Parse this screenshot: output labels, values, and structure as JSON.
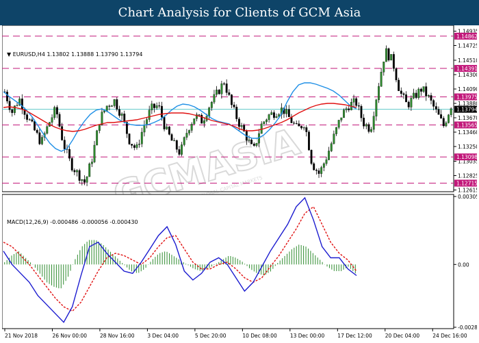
{
  "title": "Chart Analysis for Clients of GCM Asia",
  "header": {
    "symbol": "EURUSD,H4",
    "ohlc": "1.13802 1.13888 1.13790 1.13794",
    "macd_label": "MACD(12,26,9) -0.000486 -0.000056 -0.000430"
  },
  "watermark": {
    "text": "GCMASIA",
    "sub": "GLOBAL CAPITAL MARKETS"
  },
  "colors": {
    "banner": "#0e4468",
    "ma_fast": "#1e8fe6",
    "ma_slow": "#e01010",
    "level": "#c2187a",
    "current": "#5fc8c8",
    "macd_hist": "#2e8b2e",
    "macd_signal": "#e01010",
    "macd_line": "#1a1acf"
  },
  "chart_data": [
    {
      "type": "candlestick",
      "symbol": "EURUSD",
      "timeframe": "H4",
      "ylim": [
        1.1261,
        1.15
      ],
      "y_ticks": [
        "1.14935",
        "1.14725",
        "1.14510",
        "1.14300",
        "1.14090",
        "1.13880",
        "1.13670",
        "1.13460",
        "1.13250",
        "1.13035",
        "1.12825",
        "1.12615"
      ],
      "levels": [
        {
          "label": "1.14862",
          "value": 1.14862
        },
        {
          "label": "1.14391",
          "value": 1.14391
        },
        {
          "label": "1.13975",
          "value": 1.13975
        },
        {
          "label": "1.13565",
          "value": 1.13565
        },
        {
          "label": "1.13098",
          "value": 1.13098
        },
        {
          "label": "1.12715",
          "value": 1.12715
        }
      ],
      "current_price": {
        "label": "1.13794",
        "value": 1.13794
      },
      "x_ticks": [
        "21 Nov 2018",
        "26 Nov 00:00",
        "28 Nov 16:00",
        "3 Dec 04:00",
        "5 Dec 20:00",
        "10 Dec 08:00",
        "13 Dec 00:00",
        "17 Dec 12:00",
        "20 Dec 04:00",
        "24 Dec 16:00"
      ],
      "close_path": [
        1.1405,
        1.1375,
        1.1395,
        1.137,
        1.135,
        1.133,
        1.1358,
        1.138,
        1.133,
        1.13,
        1.1285,
        1.1272,
        1.131,
        1.1365,
        1.1385,
        1.1392,
        1.137,
        1.1335,
        1.132,
        1.1355,
        1.138,
        1.1385,
        1.135,
        1.133,
        1.1315,
        1.135,
        1.137,
        1.1362,
        1.1385,
        1.1402,
        1.142,
        1.1385,
        1.136,
        1.134,
        1.1318,
        1.1355,
        1.137,
        1.1375,
        1.138,
        1.1365,
        1.135,
        1.136,
        1.13,
        1.1285,
        1.131,
        1.134,
        1.137,
        1.1385,
        1.139,
        1.136,
        1.135,
        1.141,
        1.1465,
        1.145,
        1.1405,
        1.1385,
        1.1398,
        1.141,
        1.1395,
        1.1375,
        1.1355,
        1.1385
      ],
      "ma_fast": [
        1.1405,
        1.1398,
        1.1392,
        1.1386,
        1.1378,
        1.1368,
        1.1355,
        1.1342,
        1.133,
        1.1322,
        1.1318,
        1.1322,
        1.1335,
        1.135,
        1.1362,
        1.1372,
        1.1378,
        1.138,
        1.1376,
        1.137,
        1.1364,
        1.136,
        1.1357,
        1.1356,
        1.1356,
        1.1357,
        1.136,
        1.1364,
        1.137,
        1.1378,
        1.1384,
        1.1387,
        1.1386,
        1.1383,
        1.1378,
        1.1372,
        1.1366,
        1.1362,
        1.136,
        1.1358,
        1.1352,
        1.1346,
        1.134,
        1.1337,
        1.1337,
        1.1342,
        1.135,
        1.136,
        1.1372,
        1.139,
        1.1405,
        1.1415,
        1.1418,
        1.1418,
        1.1416,
        1.1413,
        1.141,
        1.1406,
        1.14,
        1.1392,
        1.1384,
        1.138
      ],
      "ma_slow": [
        1.1382,
        1.1383,
        1.1382,
        1.138,
        1.1377,
        1.1372,
        1.1367,
        1.1362,
        1.1357,
        1.1353,
        1.135,
        1.1348,
        1.1347,
        1.1348,
        1.135,
        1.1353,
        1.1356,
        1.1358,
        1.136,
        1.136,
        1.1361,
        1.1362,
        1.1363,
        1.1364,
        1.1366,
        1.1368,
        1.137,
        1.1372,
        1.1373,
        1.1374,
        1.1374,
        1.1374,
        1.1373,
        1.1371,
        1.1369,
        1.1366,
        1.1363,
        1.1361,
        1.1359,
        1.1357,
        1.1354,
        1.135,
        1.1348,
        1.1348,
        1.1349,
        1.1351,
        1.1354,
        1.1357,
        1.136,
        1.1364,
        1.1369,
        1.1374,
        1.1378,
        1.1382,
        1.1385,
        1.1387,
        1.1388,
        1.1388,
        1.1387,
        1.1386,
        1.1384,
        1.1382
      ]
    },
    {
      "type": "macd",
      "params": "MACD(12,26,9)",
      "ylim": [
        -0.002825,
        0.003058
      ],
      "y_ticks": [
        "0.003058",
        "0.00",
        "-0.002825"
      ],
      "histogram_path": [
        0.0001,
        0.0004,
        0.0006,
        0.0003,
        0.0,
        -0.0004,
        -0.0008,
        -0.001,
        -0.0011,
        -0.0006,
        0.0002,
        0.0008,
        0.0011,
        0.0011,
        0.0009,
        0.0006,
        0.0003,
        0.0,
        -0.0003,
        -0.0004,
        -0.0002,
        0.0002,
        0.0005,
        0.0006,
        0.0004,
        0.0002,
        0.0,
        -0.0002,
        -0.0003,
        -0.0002,
        0.0,
        0.0002,
        0.0004,
        0.0003,
        0.0001,
        -0.0002,
        -0.0004,
        -0.0005,
        -0.0003,
        0.0001,
        0.0004,
        0.0007,
        0.0009,
        0.0008,
        0.0005,
        0.0002,
        -0.0001,
        -0.0003,
        -0.0003,
        -0.0001,
        -0.0004
      ],
      "macd_line_path": [
        0.0006,
        0.0,
        -0.0004,
        -0.0008,
        -0.0014,
        -0.0018,
        -0.0022,
        -0.0026,
        -0.0019,
        -0.0005,
        0.0008,
        0.001,
        0.0005,
        0.0001,
        -0.0003,
        -0.0004,
        0.0001,
        0.0007,
        0.0013,
        0.0017,
        0.0009,
        -0.0003,
        -0.0007,
        -0.0004,
        0.0001,
        0.0003,
        0.0,
        -0.0006,
        -0.0012,
        -0.0008,
        -0.0001,
        0.0006,
        0.0012,
        0.0018,
        0.0026,
        0.003,
        0.002,
        0.0008,
        0.0003,
        0.0003,
        -0.0002,
        -0.0005
      ],
      "signal_line_path": [
        0.001,
        0.0008,
        0.0004,
        0.0,
        -0.0005,
        -0.001,
        -0.0015,
        -0.0019,
        -0.0021,
        -0.0017,
        -0.001,
        -0.0003,
        0.0003,
        0.0005,
        0.0004,
        0.0002,
        0.0,
        0.0003,
        0.0008,
        0.0012,
        0.0013,
        0.0007,
        0.0001,
        -0.0002,
        -0.0002,
        0.0,
        0.0001,
        -0.0002,
        -0.0006,
        -0.0008,
        -0.0006,
        -0.0001,
        0.0004,
        0.001,
        0.0016,
        0.0023,
        0.0026,
        0.0018,
        0.001,
        0.0005,
        0.0002,
        -0.0003
      ]
    }
  ]
}
